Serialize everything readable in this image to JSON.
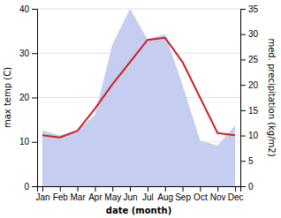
{
  "chart_data": {
    "type": "line",
    "xlabel": "date (month)",
    "ylabel": "max temp (C)",
    "y2label": "med. precipitation (kg/m2)",
    "categories": [
      "Jan",
      "Feb",
      "Mar",
      "Apr",
      "May",
      "Jun",
      "Jul",
      "Aug",
      "Sep",
      "Oct",
      "Nov",
      "Dec"
    ],
    "series": [
      {
        "type": "area",
        "axis": "y2",
        "color": "#c5cdf0",
        "values": [
          11,
          10,
          11,
          14,
          28,
          35,
          29,
          30,
          20,
          9,
          8,
          12
        ]
      },
      {
        "type": "line",
        "color": "#cc2222",
        "values": [
          11.5,
          11.0,
          12.5,
          17.5,
          23.0,
          28.0,
          33.0,
          33.5,
          28.0,
          20.0,
          12.0,
          11.5
        ]
      }
    ],
    "ylim": [
      0,
      40
    ],
    "yticks": [
      0,
      10,
      20,
      30,
      40
    ],
    "y2lim": [
      0,
      35
    ],
    "y2ticks": [
      0,
      5,
      10,
      15,
      20,
      25,
      30,
      35
    ],
    "grid": true
  }
}
